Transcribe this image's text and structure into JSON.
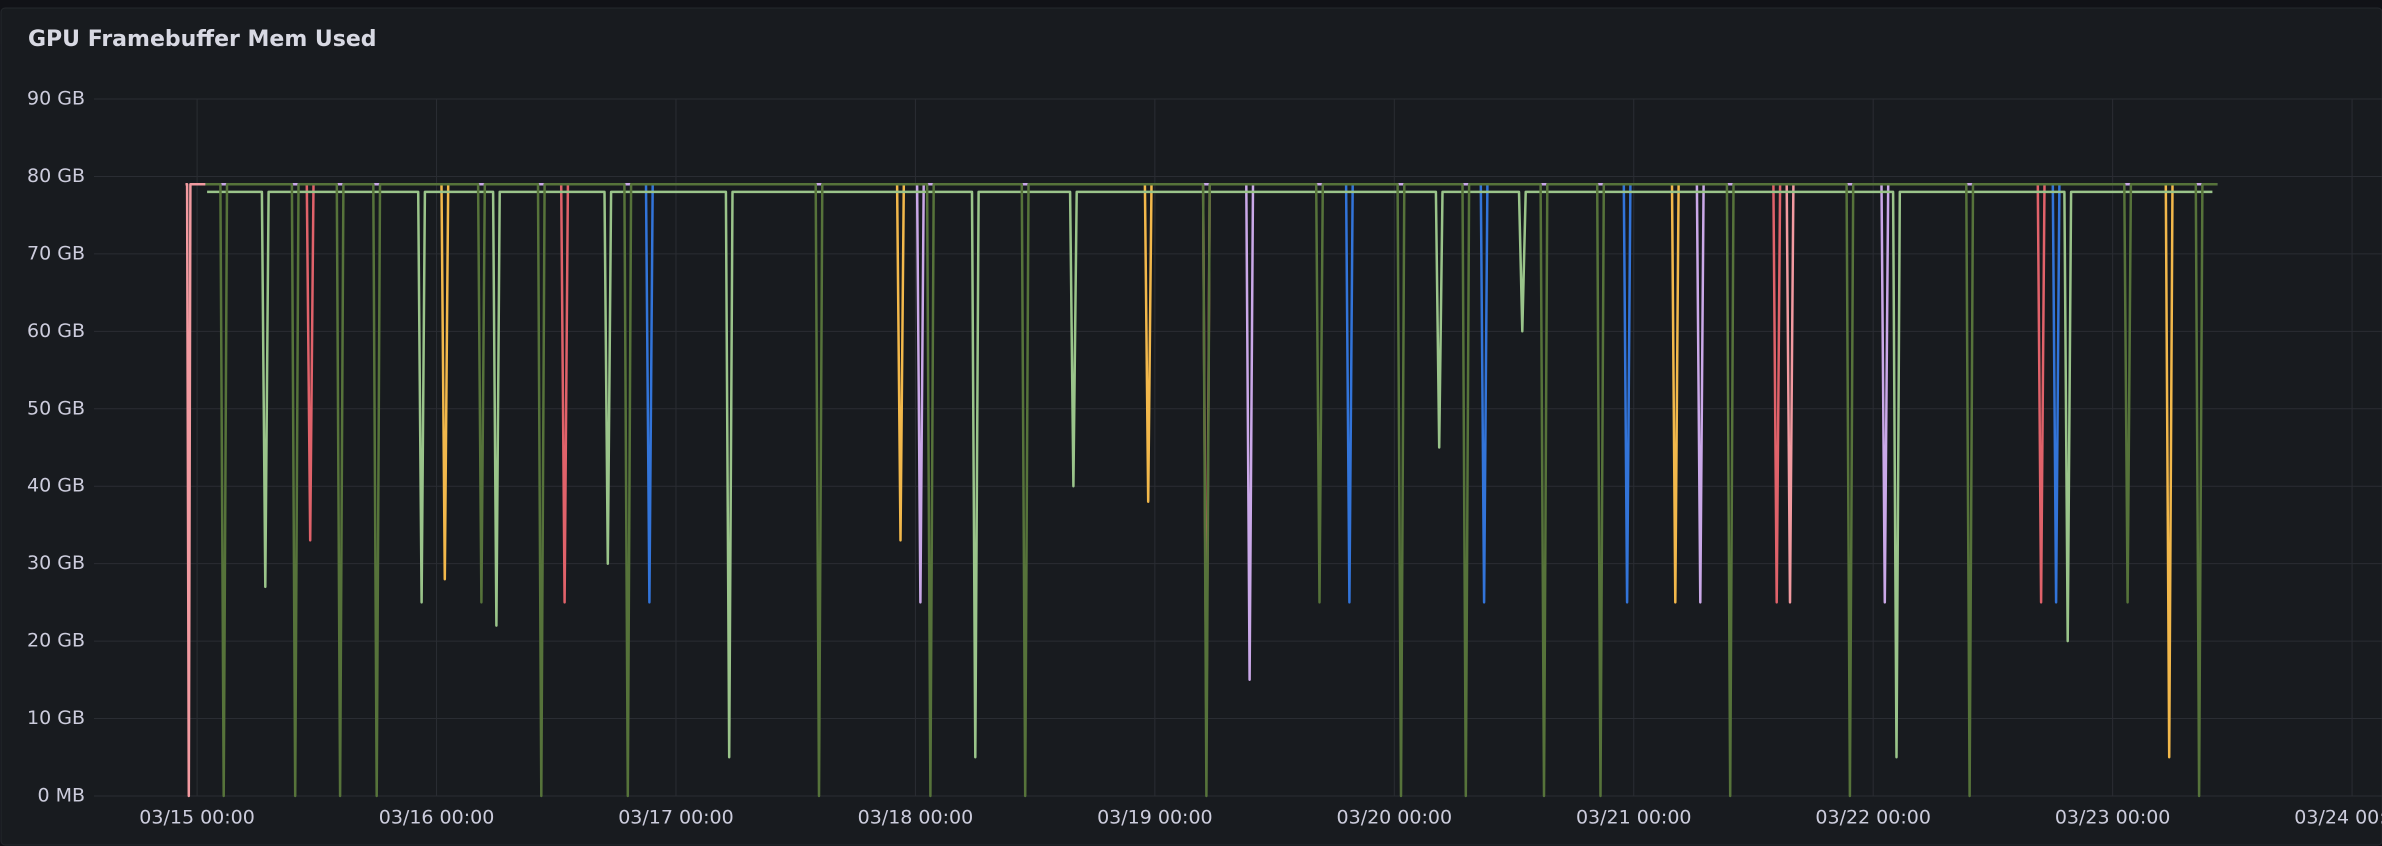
{
  "chart_data": {
    "type": "line",
    "title": "GPU Framebuffer Mem Used",
    "xlim": [
      "03/14 13:40",
      "03/24 03:00"
    ],
    "xticks": [
      "03/15 00:00",
      "03/16 00:00",
      "03/17 00:00",
      "03/18 00:00",
      "03/19 00:00",
      "03/20 00:00",
      "03/21 00:00",
      "03/22 00:00",
      "03/23 00:00",
      "03/24 00:00"
    ],
    "ylim": [
      0,
      90
    ],
    "yticks": [
      {
        "value": 0,
        "label": "0 MB"
      },
      {
        "value": 10,
        "label": "10 GB"
      },
      {
        "value": 20,
        "label": "20 GB"
      },
      {
        "value": 30,
        "label": "30 GB"
      },
      {
        "value": 40,
        "label": "40 GB"
      },
      {
        "value": 50,
        "label": "50 GB"
      },
      {
        "value": 60,
        "label": "60 GB"
      },
      {
        "value": 70,
        "label": "70 GB"
      },
      {
        "value": 80,
        "label": "80 GB"
      },
      {
        "value": 90,
        "label": "90 GB"
      }
    ],
    "grid": true,
    "series": [
      {
        "color": "#f29aa0",
        "x": [
          "03/14 22:50",
          "03/14 23:00",
          "03/14 23:10",
          "03/14 23:20",
          "03/21 15:20",
          "03/21 15:40",
          "03/21 16:00",
          "03/23 10:30"
        ],
        "values": [
          79,
          79,
          0,
          79,
          79,
          25,
          79,
          79
        ]
      },
      {
        "color": "#f2b84b",
        "x": [
          "03/15 00:50",
          "03/16 00:30",
          "03/16 00:50",
          "03/16 01:10",
          "03/17 22:10",
          "03/17 22:30",
          "03/17 22:50",
          "03/18 23:00",
          "03/18 23:20",
          "03/18 23:40",
          "03/21 03:50",
          "03/21 04:10",
          "03/21 04:30",
          "03/23 05:20",
          "03/23 05:40",
          "03/23 06:00",
          "03/23 10:30"
        ],
        "values": [
          79,
          79,
          28,
          79,
          79,
          33,
          79,
          79,
          38,
          79,
          79,
          25,
          79,
          79,
          5,
          79,
          79
        ]
      },
      {
        "color": "#e0626a",
        "x": [
          "03/15 00:50",
          "03/15 11:00",
          "03/15 11:20",
          "03/15 11:40",
          "03/16 12:30",
          "03/16 12:50",
          "03/16 13:10",
          "03/19 04:50",
          "03/19 05:10",
          "03/19 05:30",
          "03/21 14:00",
          "03/21 14:20",
          "03/21 14:40",
          "03/22 16:30",
          "03/22 16:50",
          "03/22 17:10",
          "03/23 10:30"
        ],
        "values": [
          79,
          79,
          33,
          79,
          79,
          25,
          79,
          79,
          8,
          79,
          79,
          25,
          79,
          79,
          25,
          79,
          79
        ]
      },
      {
        "color": "#3274d9",
        "x": [
          "03/15 00:50",
          "03/16 21:00",
          "03/16 21:20",
          "03/16 21:40",
          "03/19 19:10",
          "03/19 19:30",
          "03/19 19:50",
          "03/20 08:40",
          "03/20 09:00",
          "03/20 09:20",
          "03/20 23:00",
          "03/20 23:20",
          "03/20 23:40",
          "03/22 18:00",
          "03/22 18:20",
          "03/22 18:40",
          "03/23 10:30"
        ],
        "values": [
          79,
          79,
          25,
          79,
          79,
          25,
          79,
          79,
          25,
          79,
          79,
          25,
          79,
          79,
          25,
          79,
          79
        ]
      },
      {
        "color": "#caa8e8",
        "x": [
          "03/15 00:50",
          "03/18 00:10",
          "03/18 00:30",
          "03/18 00:50",
          "03/19 09:10",
          "03/19 09:30",
          "03/19 09:50",
          "03/21 06:20",
          "03/21 06:40",
          "03/21 07:00",
          "03/22 00:50",
          "03/22 01:10",
          "03/22 01:30",
          "03/23 10:30"
        ],
        "values": [
          79,
          79,
          25,
          79,
          79,
          15,
          79,
          79,
          25,
          79,
          79,
          25,
          79,
          79
        ]
      },
      {
        "color": "#9ac48a",
        "x": [
          "03/15 01:00",
          "03/15 06:30",
          "03/15 06:50",
          "03/15 07:10",
          "03/15 22:10",
          "03/15 22:30",
          "03/15 22:50",
          "03/16 05:40",
          "03/16 06:00",
          "03/16 06:20",
          "03/16 16:50",
          "03/16 17:10",
          "03/16 17:30",
          "03/17 05:00",
          "03/17 05:20",
          "03/17 05:40",
          "03/18 05:40",
          "03/18 06:00",
          "03/18 06:20",
          "03/18 15:30",
          "03/18 15:50",
          "03/18 16:10",
          "03/20 04:10",
          "03/20 04:30",
          "03/20 04:50",
          "03/20 12:30",
          "03/20 12:50",
          "03/20 13:10",
          "03/22 02:00",
          "03/22 02:20",
          "03/22 02:40",
          "03/22 19:10",
          "03/22 19:30",
          "03/22 19:50",
          "03/23 10:00"
        ],
        "values": [
          78,
          78,
          27,
          78,
          78,
          25,
          78,
          78,
          22,
          78,
          78,
          30,
          78,
          78,
          5,
          78,
          78,
          5,
          78,
          78,
          40,
          78,
          78,
          45,
          78,
          78,
          60,
          78,
          78,
          5,
          78,
          78,
          20,
          78,
          78
        ]
      },
      {
        "color": "#56733a",
        "x": [
          "03/15 00:50",
          "03/15 02:20",
          "03/15 02:40",
          "03/15 03:00",
          "03/15 09:30",
          "03/15 09:50",
          "03/15 10:10",
          "03/15 14:00",
          "03/15 14:20",
          "03/15 14:40",
          "03/15 17:40",
          "03/15 18:00",
          "03/15 18:20",
          "03/16 04:10",
          "03/16 04:30",
          "03/16 04:50",
          "03/16 10:10",
          "03/16 10:30",
          "03/16 10:50",
          "03/16 18:50",
          "03/16 19:10",
          "03/16 19:30",
          "03/17 14:00",
          "03/17 14:20",
          "03/17 14:40",
          "03/18 01:10",
          "03/18 01:30",
          "03/18 01:50",
          "03/18 10:40",
          "03/18 11:00",
          "03/18 11:20",
          "03/19 04:50",
          "03/19 05:10",
          "03/19 05:30",
          "03/19 16:10",
          "03/19 16:30",
          "03/19 16:50",
          "03/20 00:20",
          "03/20 00:40",
          "03/20 01:00",
          "03/20 06:50",
          "03/20 07:10",
          "03/20 07:30",
          "03/20 14:40",
          "03/20 15:00",
          "03/20 15:20",
          "03/20 20:20",
          "03/20 20:40",
          "03/20 21:00",
          "03/21 09:20",
          "03/21 09:40",
          "03/21 10:00",
          "03/21 21:20",
          "03/21 21:40",
          "03/21 22:00",
          "03/22 09:20",
          "03/22 09:40",
          "03/22 10:00",
          "03/23 01:10",
          "03/23 01:30",
          "03/23 01:50",
          "03/23 08:20",
          "03/23 08:40",
          "03/23 09:00",
          "03/23 10:30"
        ],
        "values": [
          79,
          79,
          0,
          79,
          79,
          0,
          79,
          79,
          0,
          79,
          79,
          0,
          79,
          79,
          25,
          79,
          79,
          0,
          79,
          79,
          0,
          79,
          79,
          0,
          79,
          79,
          0,
          79,
          79,
          0,
          79,
          79,
          0,
          79,
          79,
          25,
          79,
          79,
          0,
          79,
          79,
          0,
          79,
          79,
          0,
          79,
          79,
          0,
          79,
          79,
          0,
          79,
          79,
          0,
          79,
          79,
          0,
          79,
          79,
          25,
          79,
          79,
          0,
          79,
          79
        ]
      }
    ]
  }
}
